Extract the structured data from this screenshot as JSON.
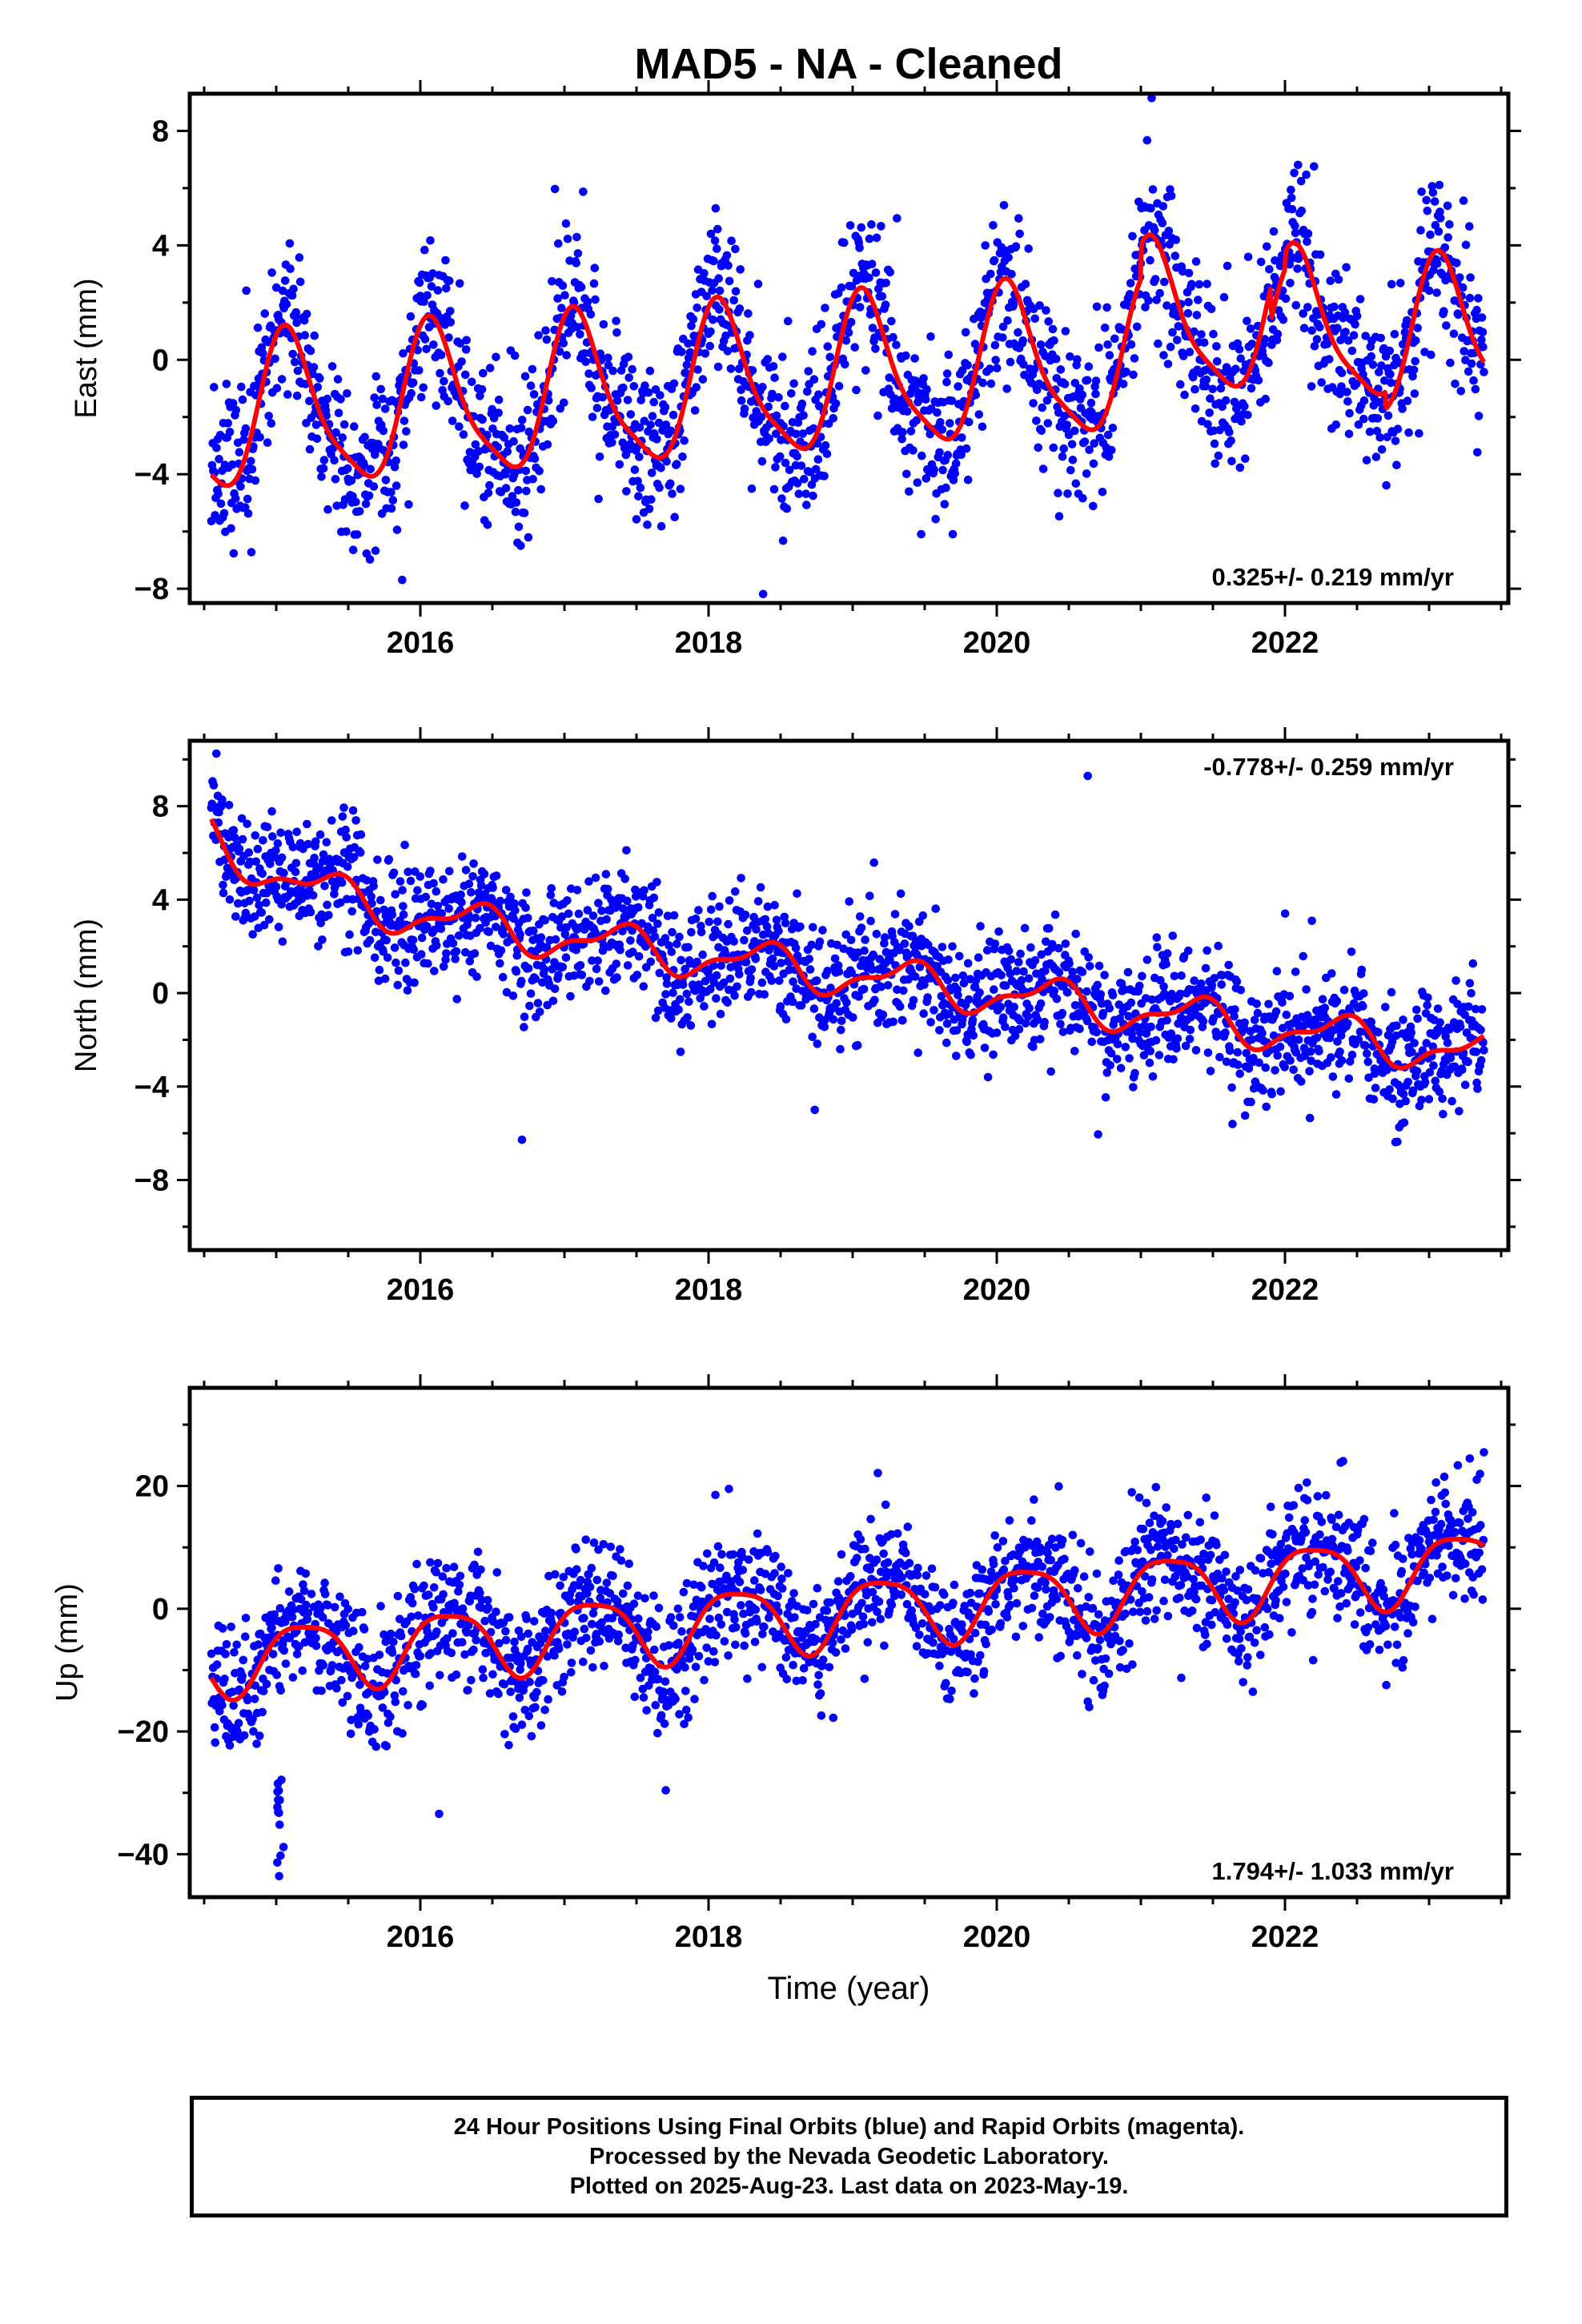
{
  "title": "MAD5  - NA - Cleaned",
  "xlabel": "Time (year)",
  "colors": {
    "points": "#0000ff",
    "fit": "#ff0000",
    "axes": "#000000"
  },
  "footer": {
    "line1": "24 Hour Positions Using Final Orbits (blue) and Rapid Orbits (magenta).",
    "line2": "Processed by the Nevada Geodetic Laboratory.",
    "line3": "Plotted on 2025-Aug-23. Last data on 2023-May-19."
  },
  "chart_data": [
    {
      "type": "scatter",
      "ylabel": "East (mm)",
      "xlim": [
        2014.4,
        2023.55
      ],
      "ylim": [
        -8.5,
        9.3
      ],
      "x_ticks": [
        2016,
        2018,
        2020,
        2022
      ],
      "y_ticks": [
        -8,
        -4,
        0,
        4,
        8
      ],
      "rate_text": "0.325+/- 0.219 mm/yr",
      "rate_position": "bottom-right",
      "x_start": 2014.55,
      "x_end": 2023.38,
      "fit": {
        "name": "",
        "offset": -0.62,
        "rate": 0.325,
        "ref_year": 2019,
        "annual_amp": 2.6,
        "annual_phase": 2.6,
        "step": {
          "year": 2021.0,
          "amount": 0.0
        }
      }
    },
    {
      "type": "scatter",
      "ylabel": "North (mm)",
      "xlim": [
        2014.4,
        2023.55
      ],
      "ylim": [
        -11.0,
        10.8
      ],
      "x_ticks": [
        2016,
        2018,
        2020,
        2022
      ],
      "y_ticks": [
        -8,
        -4,
        0,
        4,
        8
      ],
      "rate_text": "-0.778+/- 0.259 mm/yr",
      "rate_position": "top-right",
      "x_start": 2014.55,
      "x_end": 2023.38,
      "fit": {
        "name": "",
        "offset": 0.75,
        "rate": -0.778,
        "ref_year": 2019,
        "annual_amp": 0.8,
        "annual_phase": 0.8
      }
    },
    {
      "type": "scatter",
      "ylabel": "Up (mm)",
      "xlim": [
        2014.4,
        2023.55
      ],
      "ylim": [
        -47,
        36
      ],
      "x_ticks": [
        2016,
        2018,
        2020,
        2022
      ],
      "y_ticks": [
        -40,
        -20,
        0,
        20
      ],
      "rate_text": "1.794+/- 1.033 mm/yr",
      "rate_position": "bottom-right",
      "x_start": 2014.55,
      "x_end": 2023.38,
      "fit": {
        "name": "",
        "offset": -0.5,
        "rate": 1.794,
        "ref_year": 2019,
        "annual_amp": 5.5,
        "annual_phase": 1.9
      }
    }
  ]
}
